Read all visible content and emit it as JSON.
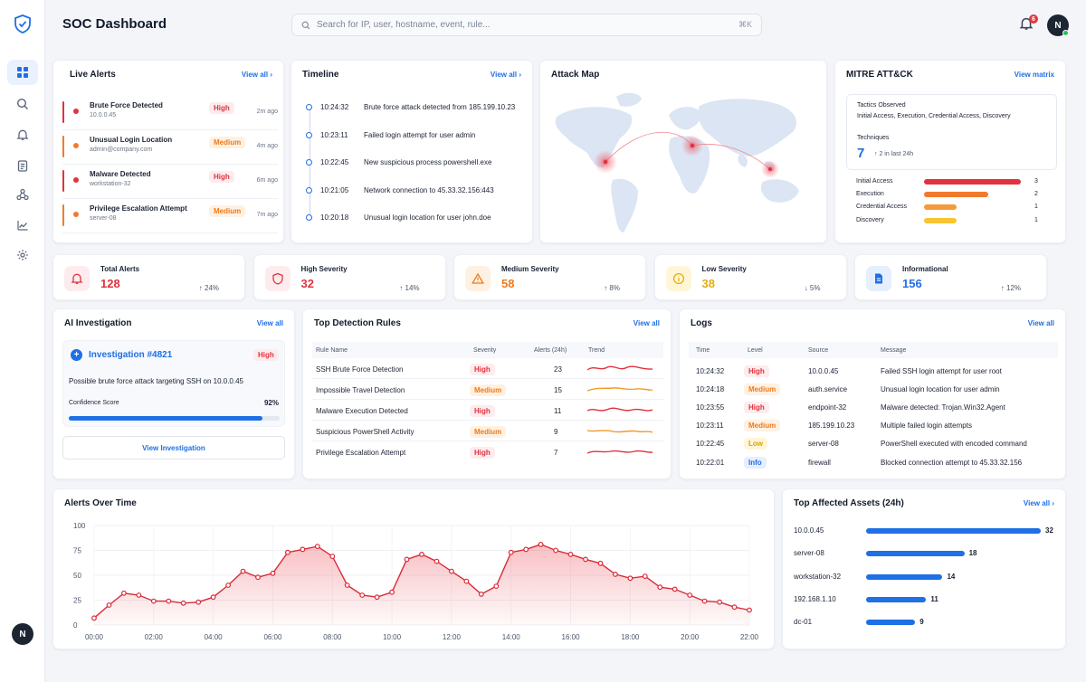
{
  "app": {
    "title": "SOC Dashboard",
    "user_initial": "N",
    "notification_count": "6"
  },
  "search": {
    "placeholder": "Search for IP, user, hostname, event, rule...",
    "shortcut": "⌘K"
  },
  "live_alerts": {
    "title": "Live Alerts",
    "view_all": "View all ›",
    "items": [
      {
        "name": "Brute Force Detected",
        "sub": "10.0.0.45",
        "severity": "High",
        "ago": "2m ago"
      },
      {
        "name": "Unusual Login Location",
        "sub": "admin@company.com",
        "severity": "Medium",
        "ago": "4m ago"
      },
      {
        "name": "Malware Detected",
        "sub": "workstation-32",
        "severity": "High",
        "ago": "6m ago"
      },
      {
        "name": "Privilege Escalation Attempt",
        "sub": "server-08",
        "severity": "Medium",
        "ago": "7m ago"
      }
    ]
  },
  "timeline": {
    "title": "Timeline",
    "view_all": "View all ›",
    "items": [
      {
        "time": "10:24:32",
        "text": "Brute force attack detected from 185.199.10.23"
      },
      {
        "time": "10:23:11",
        "text": "Failed login attempt for user admin"
      },
      {
        "time": "10:22:45",
        "text": "New suspicious process powershell.exe"
      },
      {
        "time": "10:21:05",
        "text": "Network connection to 45.33.32.156:443"
      },
      {
        "time": "10:20:18",
        "text": "Unusual login location for user john.doe"
      }
    ]
  },
  "attack_map": {
    "title": "Attack Map"
  },
  "mitre": {
    "title": "MITRE ATT&CK",
    "view_all": "View matrix",
    "tactics_label": "Tactics Observed",
    "tactics_value": "Initial Access, Execution, Credential Access, Discovery",
    "techniques_label": "Techniques",
    "techniques_count": "7",
    "techniques_delta": "↑ 2 in last 24h",
    "bars": [
      {
        "label": "Initial Access",
        "count": 3,
        "color": "#e0323f"
      },
      {
        "label": "Execution",
        "count": 2,
        "color": "#f17a2c"
      },
      {
        "label": "Credential Access",
        "count": 1,
        "color": "#f49a3a"
      },
      {
        "label": "Discovery",
        "count": 1,
        "color": "#f6c531"
      }
    ]
  },
  "stats": [
    {
      "label": "Total Alerts",
      "value": "128",
      "trend": "↑ 24%",
      "color": "#e0323f",
      "bg": "#fdecee",
      "icon": "bell-icon"
    },
    {
      "label": "High Severity",
      "value": "32",
      "trend": "↑ 14%",
      "color": "#e0323f",
      "bg": "#fdecee",
      "icon": "shield-icon"
    },
    {
      "label": "Medium Severity",
      "value": "58",
      "trend": "↑ 8%",
      "color": "#ee7a1a",
      "bg": "#fff1e2",
      "icon": "warning-icon"
    },
    {
      "label": "Low Severity",
      "value": "38",
      "trend": "↓ 5%",
      "color": "#e3ad10",
      "bg": "#fff6d8",
      "icon": "info-icon"
    },
    {
      "label": "Informational",
      "value": "156",
      "trend": "↑ 12%",
      "color": "#1f6fe6",
      "bg": "#e6effd",
      "icon": "document-icon"
    }
  ],
  "ai_investigation": {
    "title": "AI Investigation",
    "view_all": "View all",
    "case": "Investigation #4821",
    "severity": "High",
    "description": "Possible brute force attack targeting SSH on 10.0.0.45",
    "confidence_label": "Confidence Score",
    "confidence_value": "92%",
    "confidence": 0.92,
    "button": "View Investigation"
  },
  "rules": {
    "title": "Top Detection Rules",
    "view_all": "View all",
    "headers": [
      "Rule Name",
      "Severity",
      "Alerts (24h)",
      "Trend"
    ],
    "rows": [
      {
        "name": "SSH Brute Force Detection",
        "severity": "High",
        "alerts": "23"
      },
      {
        "name": "Impossible Travel Detection",
        "severity": "Medium",
        "alerts": "15"
      },
      {
        "name": "Malware Execution Detected",
        "severity": "High",
        "alerts": "11"
      },
      {
        "name": "Suspicious PowerShell Activity",
        "severity": "Medium",
        "alerts": "9"
      },
      {
        "name": "Privilege Escalation Attempt",
        "severity": "High",
        "alerts": "7"
      }
    ]
  },
  "logs": {
    "title": "Logs",
    "view_all": "View all",
    "headers": [
      "Time",
      "Level",
      "Source",
      "Message"
    ],
    "rows": [
      {
        "time": "10:24:32",
        "level": "High",
        "source": "10.0.0.45",
        "message": "Failed SSH login attempt for user root"
      },
      {
        "time": "10:24:18",
        "level": "Medium",
        "source": "auth.service",
        "message": "Unusual login location for user admin"
      },
      {
        "time": "10:23:55",
        "level": "High",
        "source": "endpoint-32",
        "message": "Malware detected: Trojan.Win32.Agent"
      },
      {
        "time": "10:23:11",
        "level": "Medium",
        "source": "185.199.10.23",
        "message": "Multiple failed login attempts"
      },
      {
        "time": "10:22:45",
        "level": "Low",
        "source": "server-08",
        "message": "PowerShell executed with encoded command"
      },
      {
        "time": "10:22:01",
        "level": "Info",
        "source": "firewall",
        "message": "Blocked connection attempt to 45.33.32.156"
      }
    ]
  },
  "alerts_over_time": {
    "title": "Alerts Over Time",
    "y_ticks": [
      "100",
      "75",
      "50",
      "25",
      "0"
    ],
    "x_ticks": [
      "00:00",
      "02:00",
      "04:00",
      "06:00",
      "08:00",
      "10:00",
      "12:00",
      "14:00",
      "16:00",
      "18:00",
      "20:00",
      "22:00"
    ]
  },
  "chart_data": {
    "type": "area",
    "title": "Alerts Over Time",
    "ylim": [
      0,
      100
    ],
    "x": [
      0,
      0.5,
      1,
      1.5,
      2,
      2.5,
      3,
      3.5,
      4,
      4.5,
      5,
      5.5,
      6,
      6.5,
      7,
      7.5,
      8,
      8.5,
      9,
      9.5,
      10,
      10.5,
      11,
      11.5,
      12,
      12.5,
      13,
      13.5,
      14,
      14.5,
      15,
      15.5,
      16,
      16.5,
      17,
      17.5,
      18,
      18.5,
      19,
      19.5,
      20,
      20.5,
      21,
      21.5,
      22
    ],
    "values": [
      7,
      20,
      32,
      30,
      24,
      24,
      22,
      23,
      28,
      40,
      54,
      48,
      52,
      73,
      76,
      79,
      69,
      40,
      30,
      28,
      33,
      66,
      71,
      64,
      54,
      44,
      31,
      39,
      73,
      76,
      81,
      75,
      71,
      66,
      62,
      51,
      47,
      49,
      38,
      36,
      30,
      24,
      23,
      18,
      15
    ],
    "grid": true
  },
  "assets": {
    "title": "Top Affected Assets (24h)",
    "view_all": "View all ›",
    "rows": [
      {
        "name": "10.0.0.45",
        "count": 32
      },
      {
        "name": "server-08",
        "count": 18
      },
      {
        "name": "workstation-32",
        "count": 14
      },
      {
        "name": "192.168.1.10",
        "count": 11
      },
      {
        "name": "dc-01",
        "count": 9
      }
    ]
  }
}
